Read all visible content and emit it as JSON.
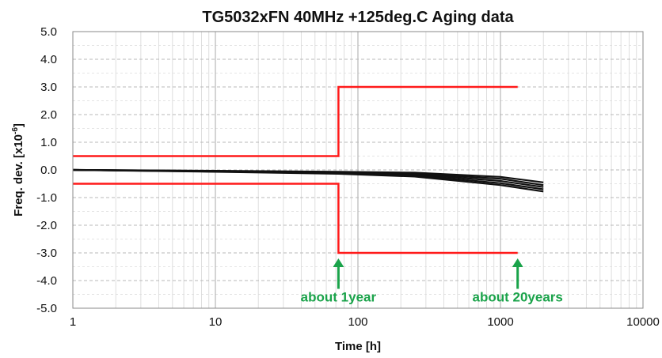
{
  "chart_data": {
    "type": "line",
    "title": "TG5032xFN   40MHz   +125deg.C Aging data",
    "xlabel": "Time [h]",
    "ylabel_prefix": "Freq. dev. [x10",
    "ylabel_exp": "-6",
    "ylabel_suffix": "]",
    "x_scale": "log",
    "xlim": [
      1,
      10000
    ],
    "ylim": [
      -5.0,
      5.0
    ],
    "grid": true,
    "x_ticks": [
      {
        "value": 1,
        "label": "1"
      },
      {
        "value": 10,
        "label": "10"
      },
      {
        "value": 100,
        "label": "100"
      },
      {
        "value": 1000,
        "label": "1000"
      },
      {
        "value": 10000,
        "label": "10000"
      }
    ],
    "y_ticks": [
      {
        "value": 5,
        "label": "5.0"
      },
      {
        "value": 4,
        "label": "4.0"
      },
      {
        "value": 3,
        "label": "3.0"
      },
      {
        "value": 2,
        "label": "2.0"
      },
      {
        "value": 1,
        "label": "1.0"
      },
      {
        "value": 0,
        "label": "0.0"
      },
      {
        "value": -1,
        "label": "-1.0"
      },
      {
        "value": -2,
        "label": "-2.0"
      },
      {
        "value": -3,
        "label": "-3.0"
      },
      {
        "value": -4,
        "label": "-4.0"
      },
      {
        "value": -5,
        "label": "-5.0"
      }
    ],
    "limit_lines": [
      {
        "color": "#ff1a1a",
        "points": [
          [
            1,
            0.5
          ],
          [
            73,
            0.5
          ],
          [
            73,
            3.0
          ],
          [
            1320,
            3.0
          ]
        ]
      },
      {
        "color": "#ff1a1a",
        "points": [
          [
            1,
            -0.5
          ],
          [
            73,
            -0.5
          ],
          [
            73,
            -3.0
          ],
          [
            1320,
            -3.0
          ]
        ]
      }
    ],
    "series_color": "#111111",
    "series": [
      {
        "values": [
          [
            1,
            0.0
          ],
          [
            10,
            -0.03
          ],
          [
            73,
            -0.07
          ],
          [
            250,
            -0.1
          ],
          [
            1000,
            -0.25
          ],
          [
            2000,
            -0.45
          ]
        ]
      },
      {
        "values": [
          [
            1,
            0.0
          ],
          [
            10,
            -0.04
          ],
          [
            73,
            -0.08
          ],
          [
            250,
            -0.13
          ],
          [
            1000,
            -0.32
          ],
          [
            2000,
            -0.55
          ]
        ]
      },
      {
        "values": [
          [
            1,
            0.0
          ],
          [
            10,
            -0.05
          ],
          [
            73,
            -0.1
          ],
          [
            250,
            -0.16
          ],
          [
            1000,
            -0.4
          ],
          [
            2000,
            -0.62
          ]
        ]
      },
      {
        "values": [
          [
            1,
            0.0
          ],
          [
            10,
            -0.06
          ],
          [
            73,
            -0.12
          ],
          [
            250,
            -0.2
          ],
          [
            1000,
            -0.48
          ],
          [
            2000,
            -0.7
          ]
        ]
      },
      {
        "values": [
          [
            1,
            0.0
          ],
          [
            10,
            -0.07
          ],
          [
            73,
            -0.14
          ],
          [
            250,
            -0.24
          ],
          [
            1000,
            -0.55
          ],
          [
            2000,
            -0.78
          ]
        ]
      }
    ],
    "annotations": [
      {
        "text": "about 1year",
        "x": 73,
        "color": "#1aa34a"
      },
      {
        "text": "about 20years",
        "x": 1320,
        "color": "#1aa34a"
      }
    ]
  }
}
